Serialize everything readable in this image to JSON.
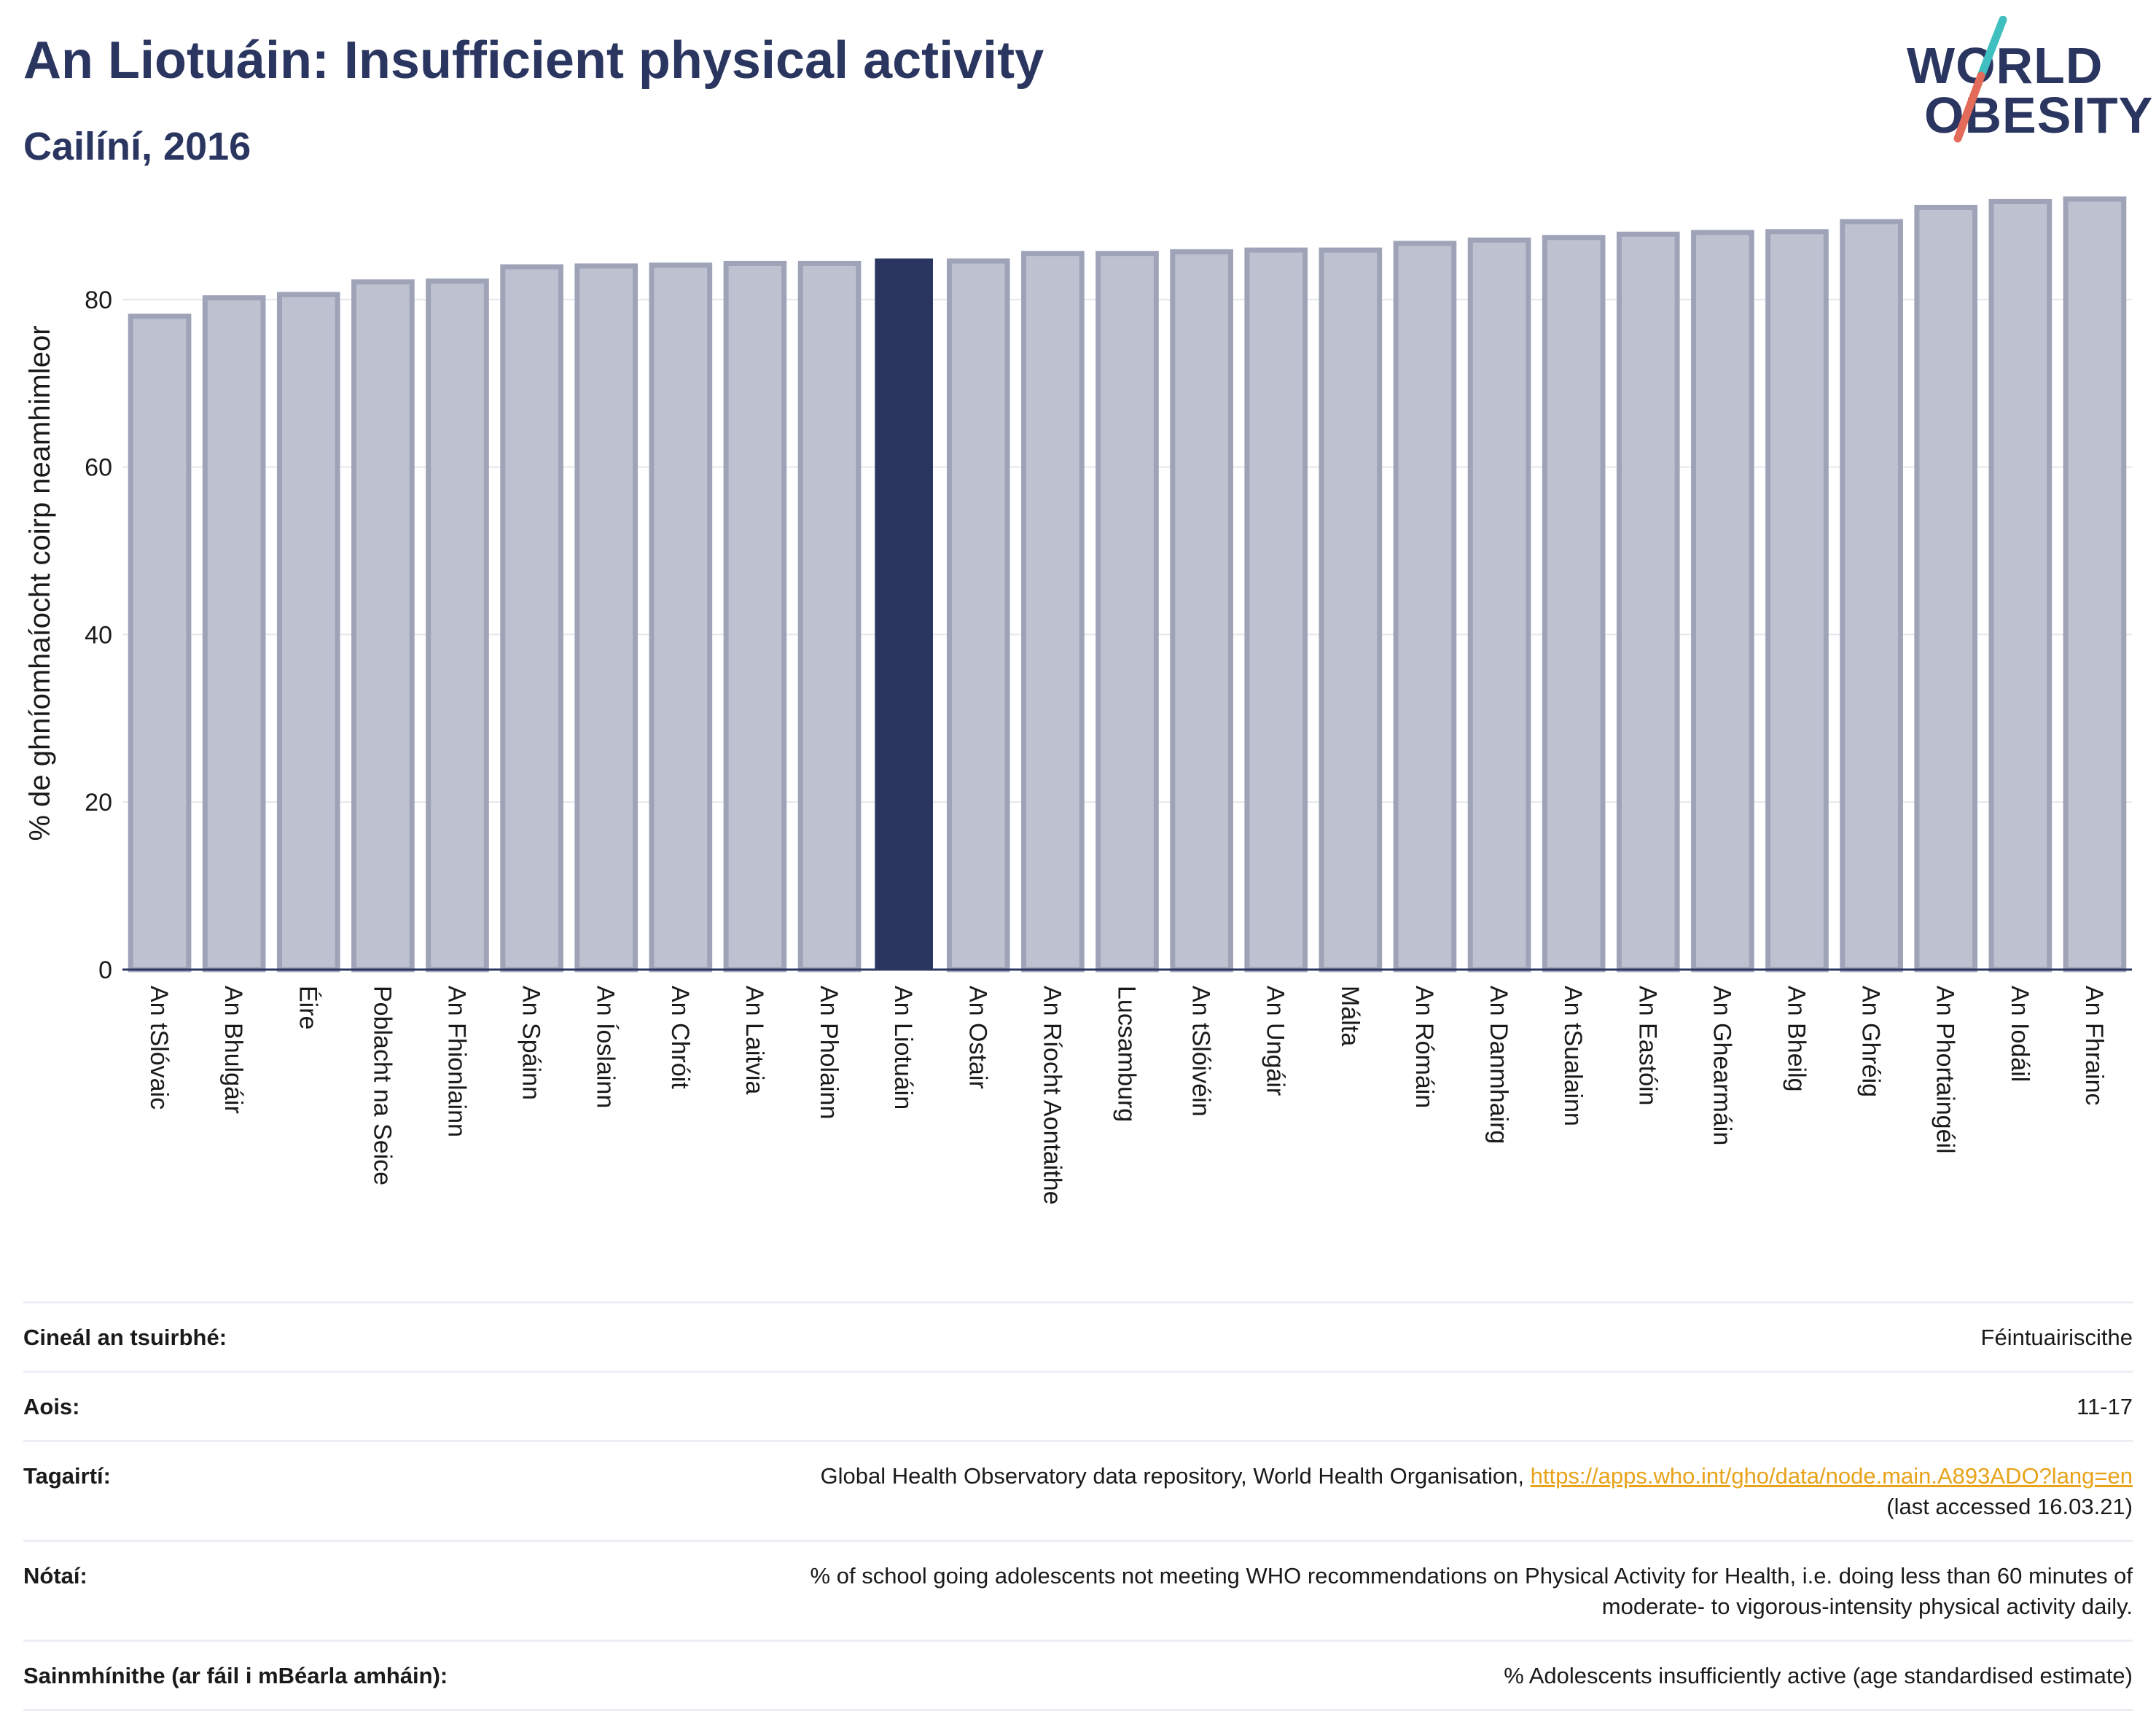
{
  "header": {
    "title": "An Liotuáin: Insufficient physical activity",
    "subtitle": "Cailíní, 2016"
  },
  "logo": {
    "line1": "WORLD",
    "line2": "OBESITY",
    "accent_teal": "#3fbfbf",
    "accent_red": "#e36b5a"
  },
  "colors": {
    "bar_fill": "#bec2d0",
    "bar_stroke": "#9ea3b8",
    "highlight": "#2a3560",
    "grid": "#e6e7ec",
    "axis": "#2a3560"
  },
  "chart_data": {
    "type": "bar",
    "title": "An Liotuáin: Insufficient physical activity",
    "subtitle": "Cailíní, 2016",
    "xlabel": "",
    "ylabel": "% de ghníomhaíocht coirp neamhimleor",
    "ylim": [
      0,
      94
    ],
    "yticks": [
      0,
      20,
      40,
      60,
      80
    ],
    "grid": true,
    "highlight": "An Liotuáin",
    "categories": [
      "An tSlóvaic",
      "An Bhulgáir",
      "Éire",
      "Poblacht na Seice",
      "An Fhionlainn",
      "An Spáinn",
      "An Íoslainn",
      "An Chróit",
      "An Laitvia",
      "An Pholainn",
      "An Liotuáin",
      "An Ostair",
      "An Ríocht Aontaithe",
      "Lucsamburg",
      "An tSlóivéin",
      "An Ungáir",
      "Málta",
      "An Rómáin",
      "An Danmhairg",
      "An tSualainn",
      "An Eastóin",
      "An Ghearmáin",
      "An Bheilg",
      "An Ghréig",
      "An Phortaingéil",
      "An Iodáil",
      "An Fhrainc"
    ],
    "values": [
      78.0,
      80.2,
      80.6,
      82.1,
      82.2,
      83.9,
      84.0,
      84.1,
      84.3,
      84.3,
      84.9,
      84.6,
      85.5,
      85.5,
      85.7,
      85.9,
      85.9,
      86.7,
      87.1,
      87.4,
      87.8,
      88.0,
      88.1,
      89.3,
      91.0,
      91.7,
      92.0
    ]
  },
  "table": {
    "rows": [
      {
        "key": "Cineál an tsuirbhé:",
        "value": "Féintuairiscithe"
      },
      {
        "key": "Aois:",
        "value": "11-17"
      },
      {
        "key": "Tagairtí:",
        "value": "Global Health Observatory data repository, World Health Organisation, ",
        "link": "https://apps.who.int/gho/data/node.main.A893ADO?lang=en",
        "value2": "(last accessed 16.03.21)"
      },
      {
        "key": "Nótaí:",
        "value": "% of school going adolescents not meeting WHO recommendations on Physical Activity for Health, i.e. doing less than 60 minutes of",
        "value2": "moderate- to vigorous-intensity physical activity daily."
      },
      {
        "key": "Sainmhínithe (ar fáil i mBéarla amháin):",
        "value": "% Adolescents insufficiently active (age standardised estimate)"
      }
    ]
  }
}
